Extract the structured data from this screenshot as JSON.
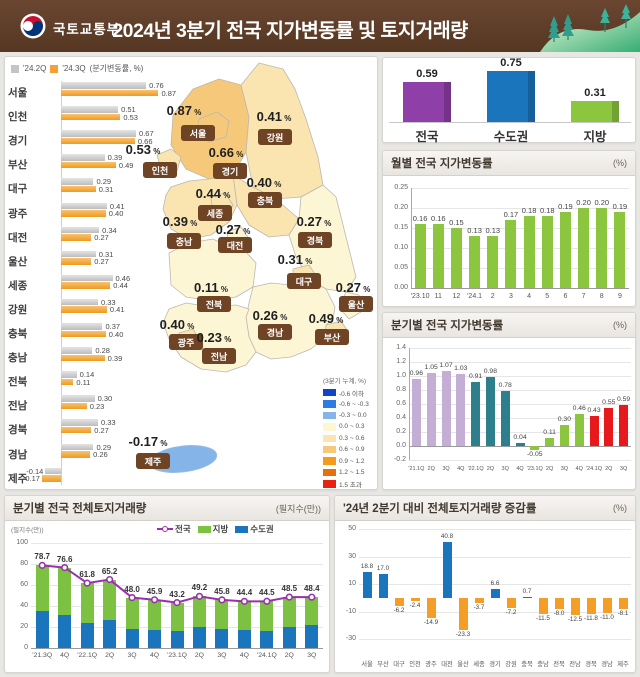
{
  "header": {
    "ministry": "국토교통부",
    "title": "2024년 3분기 전국 지가변동률 및 토지거래량"
  },
  "colors": {
    "header_bg": "#5d3b26",
    "badge_bg": "#6f4425",
    "q2_gray": "#c4c4c4",
    "q3_orange": "#f2a233",
    "national_purple": "#8e3fa8",
    "capital_blue": "#1b75bc",
    "local_green": "#8cc63f",
    "neg_orange": "#f59e27"
  },
  "left_panel": {
    "legend": {
      "q2": "'24.2Q",
      "q3": "'24.3Q",
      "unit": "(분기변동률, %)"
    },
    "map_legend": {
      "title": "(3분기 누계, %)",
      "bins": [
        {
          "label": "-0.6 이하",
          "color": "#1244c8"
        },
        {
          "label": "-0.6 ~ -0.3",
          "color": "#2b7de0"
        },
        {
          "label": "-0.3 ~ 0.0",
          "color": "#85b5e8"
        },
        {
          "label": "0.0 ~ 0.3",
          "color": "#fdf6d5"
        },
        {
          "label": "0.3 ~ 0.6",
          "color": "#fae5b0"
        },
        {
          "label": "0.6 ~ 0.9",
          "color": "#f6c97a"
        },
        {
          "label": "0.9 ~ 1.2",
          "color": "#f29b1d"
        },
        {
          "label": "1.2 ~ 1.5",
          "color": "#e4700e"
        },
        {
          "label": "1.5 초과",
          "color": "#e8220e"
        }
      ]
    }
  },
  "chart_data": [
    {
      "id": "region_bars",
      "type": "bar",
      "orientation": "horizontal",
      "series": [
        {
          "name": "'24.2Q"
        },
        {
          "name": "'24.3Q"
        }
      ],
      "unit": "%",
      "categories": [
        "서울",
        "인천",
        "경기",
        "부산",
        "대구",
        "광주",
        "대전",
        "울산",
        "세종",
        "강원",
        "충북",
        "충남",
        "전북",
        "전남",
        "경북",
        "경남",
        "제주"
      ],
      "q2": [
        0.76,
        0.51,
        0.67,
        0.39,
        0.29,
        0.41,
        0.34,
        0.31,
        0.46,
        0.33,
        0.37,
        0.28,
        0.14,
        0.3,
        0.33,
        0.29,
        -0.14
      ],
      "q3": [
        0.87,
        0.53,
        0.66,
        0.49,
        0.31,
        0.4,
        0.27,
        0.27,
        0.44,
        0.41,
        0.4,
        0.39,
        0.11,
        0.23,
        0.27,
        0.26,
        -0.17
      ]
    },
    {
      "id": "map",
      "type": "heatmap",
      "unit": "%",
      "regions": [
        {
          "key": "seoul",
          "name": "서울",
          "value": 0.87,
          "fill": "#f6c97a",
          "pos": [
            179,
            54,
            193,
            75
          ]
        },
        {
          "key": "incheon",
          "name": "인천",
          "value": 0.53,
          "fill": "#fae5b0",
          "pos": [
            138,
            93,
            155,
            112
          ]
        },
        {
          "key": "gyeonggi",
          "name": "경기",
          "value": 0.66,
          "fill": "#f6c97a",
          "pos": [
            221,
            96,
            225,
            113
          ]
        },
        {
          "key": "gangwon",
          "name": "강원",
          "value": 0.41,
          "fill": "#fae5b0",
          "pos": [
            269,
            60,
            270,
            79
          ]
        },
        {
          "key": "chungbuk",
          "name": "충북",
          "value": 0.4,
          "fill": "#fae5b0",
          "pos": [
            259,
            126,
            260,
            142
          ]
        },
        {
          "key": "sejong",
          "name": "세종",
          "value": 0.44,
          "fill": "#fae5b0",
          "pos": [
            208,
            137,
            210,
            155
          ]
        },
        {
          "key": "chungnam",
          "name": "충남",
          "value": 0.39,
          "fill": "#fae5b0",
          "pos": [
            175,
            165,
            179,
            183
          ]
        },
        {
          "key": "daejeon",
          "name": "대전",
          "value": 0.27,
          "fill": "#fdf6d5",
          "pos": [
            228,
            173,
            230,
            187
          ]
        },
        {
          "key": "gyeongbuk",
          "name": "경북",
          "value": 0.27,
          "fill": "#fdf6d5",
          "pos": [
            309,
            165,
            310,
            182
          ]
        },
        {
          "key": "daegu",
          "name": "대구",
          "value": 0.31,
          "fill": "#fae5b0",
          "pos": [
            290,
            203,
            299,
            223
          ]
        },
        {
          "key": "jeonbuk",
          "name": "전북",
          "value": 0.11,
          "fill": "#fdf6d5",
          "pos": [
            206,
            231,
            209,
            246
          ]
        },
        {
          "key": "ulsan",
          "name": "울산",
          "value": 0.27,
          "fill": "#fdf6d5",
          "pos": [
            348,
            231,
            351,
            246
          ]
        },
        {
          "key": "gwangju",
          "name": "광주",
          "value": 0.4,
          "fill": "#fae5b0",
          "pos": [
            172,
            268,
            181,
            284
          ]
        },
        {
          "key": "gyeongnam",
          "name": "경남",
          "value": 0.26,
          "fill": "#fdf6d5",
          "pos": [
            265,
            259,
            270,
            274
          ]
        },
        {
          "key": "busan",
          "name": "부산",
          "value": 0.49,
          "fill": "#fae5b0",
          "pos": [
            321,
            262,
            327,
            279
          ]
        },
        {
          "key": "jeonnam",
          "name": "전남",
          "value": 0.23,
          "fill": "#fdf6d5",
          "pos": [
            209,
            281,
            214,
            298
          ]
        },
        {
          "key": "jeju",
          "name": "제주",
          "value": -0.17,
          "fill": "#85b5e8",
          "pos": [
            143,
            385,
            148,
            403
          ]
        }
      ]
    },
    {
      "id": "summary",
      "type": "bar",
      "categories": [
        "전국",
        "수도권",
        "지방"
      ],
      "values": [
        0.59,
        0.75,
        0.31
      ],
      "colors": [
        "#8e3fa8",
        "#1b75bc",
        "#8cc63f"
      ]
    },
    {
      "id": "monthly",
      "type": "bar",
      "title": "월별 전국 지가변동률",
      "unit": "(%)",
      "categories": [
        "'23.10",
        "11",
        "12",
        "'24.1",
        "2",
        "3",
        "4",
        "5",
        "6",
        "7",
        "8",
        "9"
      ],
      "values": [
        0.16,
        0.16,
        0.15,
        0.13,
        0.13,
        0.17,
        0.18,
        0.18,
        0.19,
        0.2,
        0.2,
        0.19
      ],
      "color": "#8cc63f",
      "ylim": [
        0,
        0.25
      ],
      "yticks": [
        0,
        0.05,
        0.1,
        0.15,
        0.2,
        0.25
      ]
    },
    {
      "id": "quarterly",
      "type": "bar",
      "title": "분기별 전국 지가변동률",
      "unit": "(%)",
      "categories": [
        "'21.1Q",
        "2Q",
        "3Q",
        "4Q",
        "'22.1Q",
        "2Q",
        "3Q",
        "4Q",
        "'23.1Q",
        "2Q",
        "3Q",
        "4Q",
        "'24.1Q",
        "2Q",
        "3Q"
      ],
      "values": [
        0.96,
        1.05,
        1.07,
        1.03,
        0.91,
        0.98,
        0.78,
        0.04,
        -0.05,
        0.11,
        0.3,
        0.46,
        0.43,
        0.55,
        0.59
      ],
      "colors": [
        "#c4aed6",
        "#c4aed6",
        "#c4aed6",
        "#c4aed6",
        "#2e7f8c",
        "#2e7f8c",
        "#2e7f8c",
        "#2e7f8c",
        "#8cc63f",
        "#8cc63f",
        "#8cc63f",
        "#8cc63f",
        "#e8191c",
        "#e8191c",
        "#e8191c"
      ],
      "ylim": [
        -0.2,
        1.4
      ],
      "yticks": [
        -0.2,
        0,
        0.2,
        0.4,
        0.6,
        0.8,
        1.0,
        1.2,
        1.4
      ]
    },
    {
      "id": "transactions",
      "type": "bar",
      "title": "분기별 전국 전체토지거래량",
      "unit": "(필지수(만))",
      "axis_label": "(필지수(만))",
      "legend": [
        "전국",
        "지방",
        "수도권"
      ],
      "categories": [
        "'21.3Q",
        "4Q",
        "'22.1Q",
        "2Q",
        "3Q",
        "4Q",
        "'23.1Q",
        "2Q",
        "3Q",
        "4Q",
        "'24.1Q",
        "2Q",
        "3Q"
      ],
      "total": [
        78.7,
        76.6,
        61.8,
        65.2,
        48.0,
        45.9,
        43.2,
        49.2,
        45.8,
        44.4,
        44.5,
        48.5,
        48.4
      ],
      "sudogwon_est": [
        35,
        31,
        24,
        26.5,
        18.5,
        17,
        16.5,
        20,
        18.5,
        17.5,
        16.5,
        20,
        22
      ],
      "colors": {
        "national": "#9b2fae",
        "jibang": "#7dc142",
        "sudogwon": "#1b75bc"
      },
      "ylim": [
        0,
        100
      ],
      "yticks": [
        0,
        20,
        40,
        60,
        80,
        100
      ]
    },
    {
      "id": "change",
      "type": "bar",
      "title": "'24년 2분기 대비 전체토지거래량 증감률",
      "unit": "(%)",
      "categories": [
        "서울",
        "부산",
        "대구",
        "인천",
        "광주",
        "대전",
        "울산",
        "세종",
        "경기",
        "강원",
        "충북",
        "충남",
        "전북",
        "전남",
        "경북",
        "경남",
        "제주"
      ],
      "values": [
        18.8,
        17.0,
        -6.2,
        -2.4,
        -14.9,
        40.8,
        -23.3,
        -3.7,
        6.6,
        -7.2,
        0.7,
        -11.5,
        -8.0,
        -12.5,
        -11.8,
        -11.0,
        -8.1
      ],
      "positive_color": "#1b75bc",
      "negative_color": "#f59e27",
      "ylim": [
        -30,
        50
      ],
      "yticks": [
        50,
        30,
        10,
        -10,
        -30
      ]
    }
  ]
}
